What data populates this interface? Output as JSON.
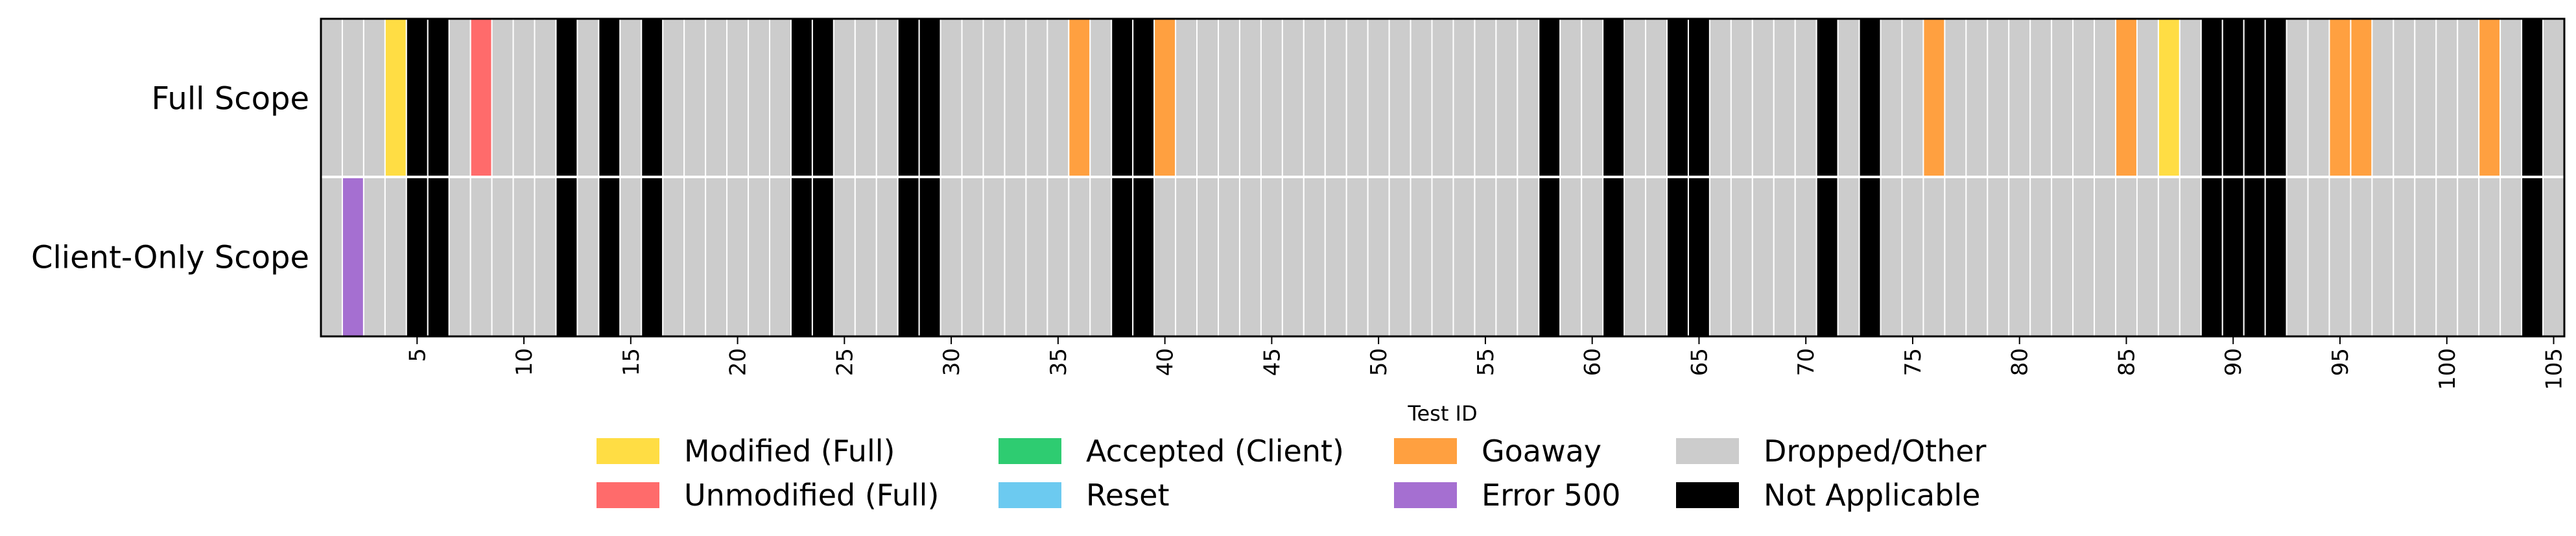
{
  "chart_data": {
    "type": "heatmap",
    "title": "",
    "xlabel": "Test ID",
    "ylabel": "",
    "rows": [
      "Full Scope",
      "Client-Only Scope"
    ],
    "x_range": [
      1,
      105
    ],
    "x_ticks": [
      5,
      10,
      15,
      20,
      25,
      30,
      35,
      40,
      45,
      50,
      55,
      60,
      65,
      70,
      75,
      80,
      85,
      90,
      95,
      100,
      105
    ],
    "default_status": "Dropped/Other",
    "categories": [
      {
        "key": "modified_full",
        "label": "Modified (Full)",
        "color": "#ffdd44"
      },
      {
        "key": "unmodified_full",
        "label": "Unmodified (Full)",
        "color": "#ff6b6b"
      },
      {
        "key": "accepted_client",
        "label": "Accepted (Client)",
        "color": "#2ecc71"
      },
      {
        "key": "reset",
        "label": "Reset",
        "color": "#6ccaf0"
      },
      {
        "key": "goaway",
        "label": "Goaway",
        "color": "#ffa040"
      },
      {
        "key": "error_500",
        "label": "Error 500",
        "color": "#a56fd1"
      },
      {
        "key": "dropped_other",
        "label": "Dropped/Other",
        "color": "#cccccc"
      },
      {
        "key": "not_applicable",
        "label": "Not Applicable",
        "color": "#000000"
      }
    ],
    "legend_location": "bottom-center",
    "grid": false,
    "cells": {
      "Full Scope": {
        "modified_full": [
          4,
          87
        ],
        "unmodified_full": [
          8
        ],
        "goaway": [
          36,
          40,
          76,
          85,
          95,
          96,
          102
        ],
        "not_applicable": [
          5,
          6,
          12,
          14,
          16,
          23,
          24,
          28,
          29,
          38,
          39,
          58,
          61,
          64,
          65,
          71,
          73,
          89,
          90,
          91,
          92,
          104
        ]
      },
      "Client-Only Scope": {
        "error_500": [
          2
        ],
        "not_applicable": [
          5,
          6,
          12,
          14,
          16,
          23,
          24,
          28,
          29,
          38,
          39,
          58,
          61,
          64,
          65,
          71,
          73,
          89,
          90,
          91,
          92,
          104
        ]
      }
    }
  }
}
